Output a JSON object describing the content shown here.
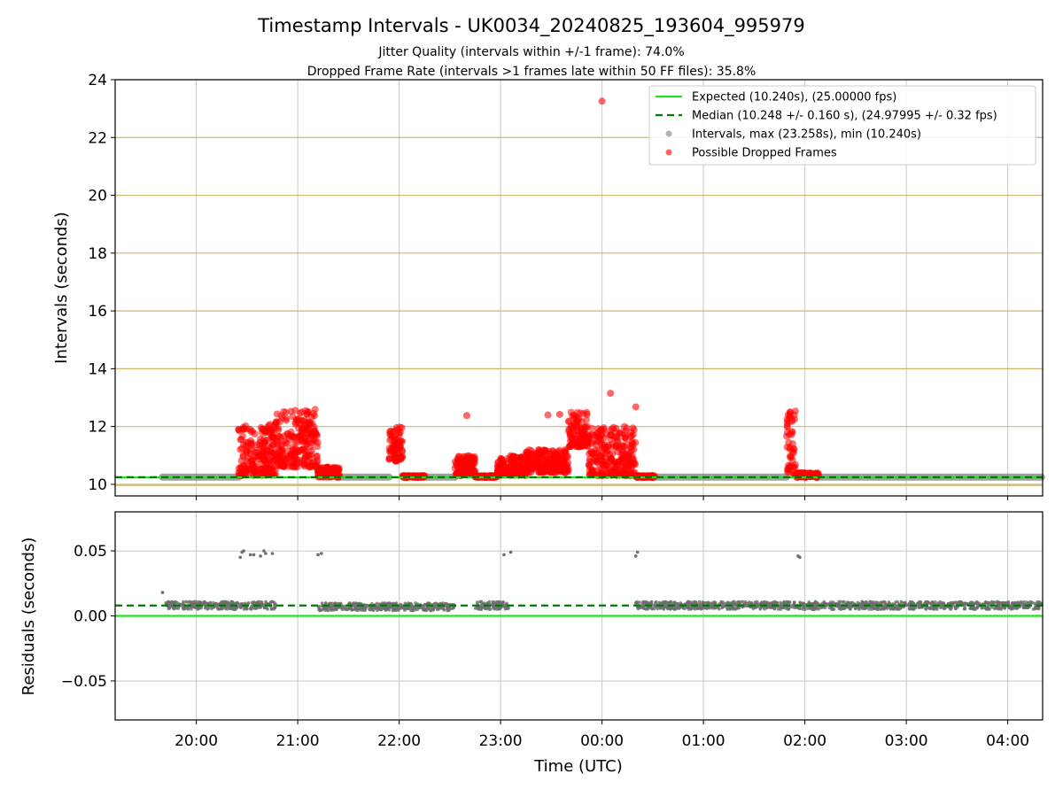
{
  "chart_data": [
    {
      "type": "scatter",
      "title": "Timestamp Intervals - UK0034_20240825_193604_995979",
      "subtitle_lines": [
        "Jitter Quality (intervals within +/-1 frame): 74.0%",
        "Dropped Frame Rate (intervals >1 frames late within 50 FF files): 35.8%"
      ],
      "xlabel": "",
      "ylabel": "Intervals (seconds)",
      "x_unit": "time of day (UTC), start 2024-08-25 19:36",
      "x_ticks": [
        "20:00",
        "21:00",
        "22:00",
        "23:00",
        "00:00",
        "01:00",
        "02:00",
        "03:00",
        "04:00"
      ],
      "ylim": [
        9.6,
        24
      ],
      "y_ticks": [
        10,
        12,
        14,
        16,
        18,
        20,
        22,
        24
      ],
      "grid": true,
      "legend_position": "top-right",
      "legend": [
        "Expected (10.240s), (25.00000 fps)",
        "Median (10.248 +/- 0.160 s), (24.97995 +/- 0.32 fps)",
        "Intervals, max (23.258s), min (10.240s)",
        "Possible Dropped Frames"
      ],
      "expected_interval": 10.24,
      "median_interval": 10.248,
      "max_interval": 23.258,
      "min_interval": 10.24,
      "dropped_frame_clusters": [
        {
          "start": "20:25",
          "end": "20:47",
          "min": 10.3,
          "max": 12.1
        },
        {
          "start": "20:47",
          "end": "21:12",
          "min": 10.6,
          "max": 12.6
        },
        {
          "start": "21:12",
          "end": "21:25",
          "min": 10.24,
          "max": 10.6
        },
        {
          "start": "21:54",
          "end": "22:02",
          "min": 10.8,
          "max": 12.0
        },
        {
          "start": "22:02",
          "end": "22:15",
          "min": 10.24,
          "max": 10.3
        },
        {
          "start": "22:33",
          "end": "22:45",
          "min": 10.3,
          "max": 11.0
        },
        {
          "start": "22:45",
          "end": "22:58",
          "min": 10.24,
          "max": 10.3
        },
        {
          "start": "22:58",
          "end": "23:15",
          "min": 10.3,
          "max": 11.0
        },
        {
          "start": "23:15",
          "end": "23:40",
          "min": 10.4,
          "max": 11.2
        },
        {
          "start": "23:40",
          "end": "23:52",
          "min": 11.3,
          "max": 12.5
        },
        {
          "start": "23:52",
          "end": "00:20",
          "min": 10.3,
          "max": 12.0
        },
        {
          "start": "00:20",
          "end": "00:31",
          "min": 10.24,
          "max": 10.3
        },
        {
          "start": "01:49",
          "end": "01:55",
          "min": 10.3,
          "max": 12.6
        },
        {
          "start": "01:55",
          "end": "02:08",
          "min": 10.24,
          "max": 10.4
        }
      ],
      "dropped_frame_outliers": [
        {
          "x": "00:00",
          "y": 23.258
        },
        {
          "x": "00:05",
          "y": 13.15
        },
        {
          "x": "00:20",
          "y": 12.68
        },
        {
          "x": "22:40",
          "y": 12.38
        },
        {
          "x": "23:28",
          "y": 12.4
        },
        {
          "x": "23:35",
          "y": 12.42
        }
      ],
      "interval_segments": [
        {
          "start": "19:40",
          "end": "20:25",
          "y": 10.25
        },
        {
          "start": "21:25",
          "end": "21:54",
          "y": 10.25
        },
        {
          "start": "22:15",
          "end": "22:33",
          "y": 10.25
        },
        {
          "start": "00:31",
          "end": "01:49",
          "y": 10.25
        },
        {
          "start": "02:08",
          "end": "04:20",
          "y": 10.25
        }
      ],
      "colors": {
        "expected": "#1ee31e",
        "median": "#007a00",
        "intervals": "#808080",
        "dropped": "#ff0000",
        "hgrid": "#d2b670",
        "vgrid": "#c8c8c8"
      }
    },
    {
      "type": "scatter",
      "xlabel": "Time (UTC)",
      "ylabel": "Residuals (seconds)",
      "x_ticks": [
        "20:00",
        "21:00",
        "22:00",
        "23:00",
        "00:00",
        "01:00",
        "02:00",
        "03:00",
        "04:00"
      ],
      "ylim": [
        -0.08,
        0.08
      ],
      "y_ticks": [
        "0.05",
        "0.00",
        "−0.05"
      ],
      "expected_residual": 0.0,
      "median_residual": 0.008,
      "first_point": {
        "x": "19:40",
        "y": 0.018
      },
      "residual_segments": [
        {
          "start": "19:42",
          "end": "20:47",
          "y": 0.008
        },
        {
          "start": "21:12",
          "end": "22:33",
          "y": 0.007
        },
        {
          "start": "22:45",
          "end": "23:05",
          "y": 0.008
        },
        {
          "start": "00:20",
          "end": "04:20",
          "y": 0.008
        }
      ],
      "residual_outliers": [
        {
          "x": "20:26",
          "y": 0.045
        },
        {
          "x": "20:27",
          "y": 0.049
        },
        {
          "x": "20:28",
          "y": 0.05
        },
        {
          "x": "20:32",
          "y": 0.047
        },
        {
          "x": "20:34",
          "y": 0.047
        },
        {
          "x": "20:38",
          "y": 0.046
        },
        {
          "x": "20:40",
          "y": 0.05
        },
        {
          "x": "20:41",
          "y": 0.048
        },
        {
          "x": "20:45",
          "y": 0.048
        },
        {
          "x": "21:12",
          "y": 0.047
        },
        {
          "x": "21:14",
          "y": 0.048
        },
        {
          "x": "23:02",
          "y": 0.047
        },
        {
          "x": "23:06",
          "y": 0.049
        },
        {
          "x": "00:20",
          "y": 0.046
        },
        {
          "x": "00:21",
          "y": 0.049
        },
        {
          "x": "01:56",
          "y": 0.046
        },
        {
          "x": "01:57",
          "y": 0.045
        }
      ],
      "colors": {
        "expected": "#1ee31e",
        "median": "#007a00",
        "residuals": "#6e6e6e",
        "grid": "#c8c8c8"
      }
    }
  ]
}
